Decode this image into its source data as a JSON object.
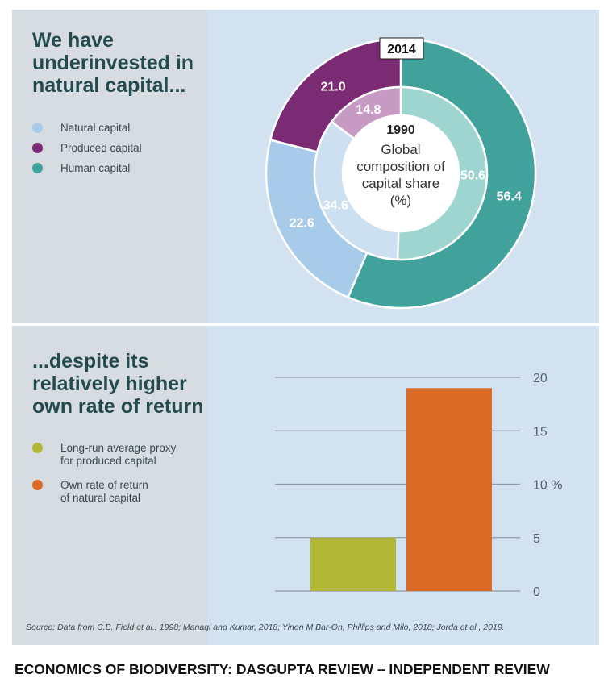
{
  "top_panel": {
    "headline": "We have\nunderinvested in\nnatural capital...",
    "legend": [
      {
        "label": "Natural capital",
        "color": "#a7cbe8"
      },
      {
        "label": "Produced capital",
        "color": "#7a2b74"
      },
      {
        "label": "Human capital",
        "color": "#41a29c"
      }
    ]
  },
  "bottom_panel": {
    "headline": "...despite its\nrelatively higher\nown rate of return",
    "legend": [
      {
        "label": "Long-run average proxy\nfor produced capital",
        "color": "#b2b835"
      },
      {
        "label": "Own rate of return\nof natural capital",
        "color": "#d96b27"
      }
    ]
  },
  "source": "Source: Data from C.B. Field et al., 1998; Managi and Kumar, 2018; Yinon M Bar-On, Phillips and Milo, 2018; Jorda et al., 2019.",
  "footer": "ECONOMICS OF BIODIVERSITY: DASGUPTA REVIEW – INDEPENDENT REVIEW",
  "chart_data": [
    {
      "type": "pie",
      "subtype": "nested-donut",
      "center_label": {
        "year": "1990",
        "text": "Global\ncomposition of\ncapital share\n(%)"
      },
      "rings": [
        {
          "name": "2014",
          "position": "outer",
          "labels": [
            "Natural capital",
            "Produced capital",
            "Human capital"
          ],
          "values": [
            22.6,
            21.0,
            56.4
          ]
        },
        {
          "name": "1990",
          "position": "inner",
          "labels": [
            "Natural capital",
            "Produced capital",
            "Human capital"
          ],
          "values": [
            34.6,
            14.8,
            50.6
          ]
        }
      ],
      "colors": {
        "outer": [
          "#a7cbe8",
          "#7a2b74",
          "#41a29c"
        ],
        "inner": [
          "#cde0f2",
          "#c79ac4",
          "#9fd5d0"
        ]
      }
    },
    {
      "type": "bar",
      "categories": [
        "Long-run average proxy for produced capital",
        "Own rate of return of natural capital"
      ],
      "values": [
        5,
        19
      ],
      "colors": [
        "#b2b835",
        "#d96b27"
      ],
      "ylim": [
        0,
        20
      ],
      "yticks": [
        0,
        5,
        10,
        15,
        20
      ],
      "ytick_labels": [
        "0",
        "5",
        "10 %",
        "15",
        "20"
      ],
      "y_axis_position": "right",
      "grid": true
    }
  ]
}
